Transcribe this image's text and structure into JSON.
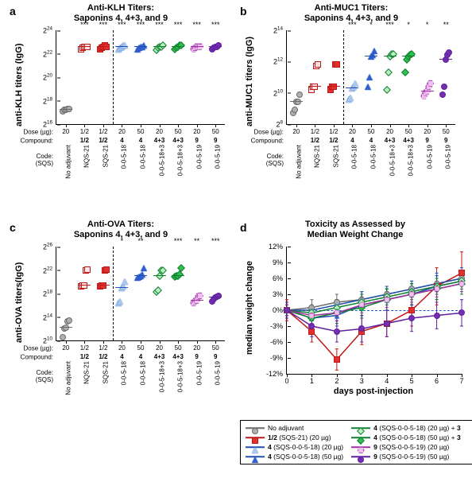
{
  "palette": {
    "no_adj": {
      "stroke": "#6b6b6b",
      "fill": "#b0b0b0",
      "shape": "circle"
    },
    "sqs21": {
      "stroke": "#c01818",
      "fill": "#e03030",
      "shape": "square"
    },
    "sqs21_open": {
      "stroke": "#c01818",
      "fill": "#ffe6e6",
      "shape": "square"
    },
    "c4_20": {
      "stroke": "#2050b0",
      "fill": "#a8c8f0",
      "shape": "tri"
    },
    "c4_50": {
      "stroke": "#2050b0",
      "fill": "#3060d0",
      "shape": "tri"
    },
    "c43_20": {
      "stroke": "#108030",
      "fill": "#b8f0c0",
      "shape": "dia"
    },
    "c43_50": {
      "stroke": "#108030",
      "fill": "#30c050",
      "shape": "dia"
    },
    "c9_20": {
      "stroke": "#a030a0",
      "fill": "#eec0f0",
      "shape": "hex"
    },
    "c9_50": {
      "stroke": "#6020a0",
      "fill": "#7030b0",
      "shape": "circle"
    }
  },
  "x_categories": [
    {
      "dose": "20",
      "compound": "",
      "code": "No adjuvant",
      "series": "no_adj",
      "sig": ""
    },
    {
      "dose": "1/2",
      "compound": "1/2",
      "code": "NQS-21",
      "series": "sqs21_open",
      "sig": "***"
    },
    {
      "dose": "1/2",
      "compound": "1/2",
      "code": "SQS-21",
      "series": "sqs21",
      "sig": "***"
    },
    {
      "dose": "20",
      "compound": "4",
      "code": "0-0-5-18",
      "series": "c4_20",
      "sig": "***",
      "dash_before": true
    },
    {
      "dose": "50",
      "compound": "4",
      "code": "0-0-5-18",
      "series": "c4_50",
      "sig": "***"
    },
    {
      "dose": "20",
      "compound": "4+3",
      "code": "0-0-5-18+3",
      "series": "c43_20",
      "sig": "***"
    },
    {
      "dose": "50",
      "compound": "4+3",
      "code": "0-0-5-18+3",
      "series": "c43_50",
      "sig": "***"
    },
    {
      "dose": "20",
      "compound": "9",
      "code": "0-0-5-19",
      "series": "c9_20",
      "sig": "***"
    },
    {
      "dose": "50",
      "compound": "9",
      "code": "0-0-5-19",
      "series": "c9_50",
      "sig": "***"
    }
  ],
  "x_categories_b_sig": [
    "",
    "",
    "",
    "***",
    "*",
    "***",
    "*",
    "*",
    "**"
  ],
  "x_categories_c_sig": [
    "",
    "",
    "",
    "*",
    "**",
    "",
    "***",
    "**",
    "***"
  ],
  "row_labels": {
    "dose": "Dose (µg):",
    "compound": "Compound:",
    "code": "Code:\n(SQS)"
  },
  "panel_a": {
    "title": "Anti-KLH Titers:\nSaponins 4, 4+3, and 9",
    "ylabel": "anti-KLH titers (IgG)",
    "ymin": 16,
    "ymax": 24,
    "ytick_step": 2,
    "data": [
      [
        17.1,
        17.2,
        17.2,
        17.3,
        17.3
      ],
      [
        22.4,
        22.5,
        22.6,
        22.6,
        22.6
      ],
      [
        22.4,
        22.5,
        22.6,
        22.7,
        22.6
      ],
      [
        22.4,
        22.5,
        22.6,
        22.7,
        22.7
      ],
      [
        22.4,
        22.5,
        22.6,
        22.6,
        22.7
      ],
      [
        22.3,
        22.5,
        22.6,
        22.6,
        22.7
      ],
      [
        22.4,
        22.5,
        22.6,
        22.7,
        22.7
      ],
      [
        22.4,
        22.5,
        22.6,
        22.6,
        22.6
      ],
      [
        22.4,
        22.5,
        22.6,
        22.6,
        22.7
      ]
    ]
  },
  "panel_b": {
    "title": "Anti-MUC1 Titers:\nSaponins 4, 4+3, and 9",
    "ylabel": "anti-MUC1 titers (IgG)",
    "ymin": 8,
    "ymax": 14,
    "ytick_step": 2,
    "data": [
      [
        8.7,
        8.9,
        9.4,
        9.4,
        9.9
      ],
      [
        10.2,
        10.4,
        10.4,
        11.7,
        11.8
      ],
      [
        10.2,
        10.4,
        10.4,
        11.8,
        11.8
      ],
      [
        9.6,
        9.7,
        10.3,
        10.4,
        10.6
      ],
      [
        10.4,
        11.0,
        12.3,
        12.4,
        12.7
      ],
      [
        10.2,
        11.3,
        12.3,
        12.5,
        12.5
      ],
      [
        11.3,
        12.1,
        12.3,
        12.4,
        12.5
      ],
      [
        9.8,
        10.0,
        10.1,
        10.4,
        10.6
      ],
      [
        9.9,
        10.4,
        12.1,
        12.4,
        12.6
      ]
    ]
  },
  "panel_c": {
    "title": "Anti-OVA Titers:\nSaponins 4, 4+3, and 9",
    "ylabel": "anti-OVA titers(IgG)",
    "ymin": 10,
    "ymax": 26,
    "ytick_step": 4,
    "data": [
      [
        10.5,
        12.0,
        12.2,
        13.3,
        13.4
      ],
      [
        19.2,
        19.3,
        19.3,
        22.0,
        22.1
      ],
      [
        19.2,
        19.3,
        19.4,
        22.0,
        22.1
      ],
      [
        16.4,
        16.6,
        19.0,
        19.2,
        20.1
      ],
      [
        20.7,
        20.8,
        21.0,
        21.2,
        22.3
      ],
      [
        18.3,
        18.5,
        21.0,
        22.0,
        22.0
      ],
      [
        20.8,
        21.0,
        21.0,
        21.2,
        22.3
      ],
      [
        16.4,
        16.7,
        16.8,
        17.5,
        17.6
      ],
      [
        16.7,
        17.0,
        17.3,
        17.5,
        17.6
      ]
    ]
  },
  "panel_d": {
    "title": "Toxicity as Assessed by\nMedian Weight Change",
    "ylabel": "median weight change",
    "xlabel": "days post-injection",
    "ymin": -12,
    "ymax": 12,
    "ytick_step": 3,
    "xticks": [
      0,
      1,
      2,
      3,
      4,
      5,
      6,
      7
    ],
    "series": [
      {
        "key": "no_adj",
        "pts": [
          0,
          0.5,
          1.5,
          2.0,
          3.0,
          4.0,
          5.0,
          6.0
        ],
        "err": [
          1,
          1.5,
          1.5,
          1.5,
          1.5,
          1.5,
          1.5,
          1.5
        ]
      },
      {
        "key": "sqs21",
        "pts": [
          0,
          -4.0,
          -9.3,
          -4.0,
          -2.5,
          0.0,
          4.5,
          7.0
        ],
        "err": [
          2,
          2,
          2,
          2.5,
          2.5,
          3,
          3.5,
          4
        ]
      },
      {
        "key": "c4_20",
        "pts": [
          0,
          0,
          1.0,
          2.0,
          3.0,
          4.0,
          5.0,
          6.0
        ],
        "err": [
          1,
          1,
          1,
          1.5,
          1.5,
          1.5,
          1.5,
          1.5
        ]
      },
      {
        "key": "c4_50",
        "pts": [
          0,
          -1.5,
          -1.0,
          1.0,
          2.0,
          3.0,
          4.5,
          5.5
        ],
        "err": [
          1.5,
          2,
          2,
          2,
          2,
          2,
          2.5,
          2.5
        ]
      },
      {
        "key": "c43_20",
        "pts": [
          0,
          -0.5,
          0.5,
          1.5,
          2.5,
          3.5,
          4.5,
          5.5
        ],
        "err": [
          1,
          1.5,
          1.5,
          1.5,
          1.5,
          1.5,
          1.5,
          1.5
        ]
      },
      {
        "key": "c43_50",
        "pts": [
          0,
          -1.5,
          -0.5,
          0.5,
          2.0,
          3.0,
          4.0,
          5.0
        ],
        "err": [
          1.5,
          2,
          2,
          2,
          2,
          2,
          2,
          2
        ]
      },
      {
        "key": "c9_20",
        "pts": [
          0,
          -1.0,
          -0.5,
          1.0,
          2.0,
          3.0,
          4.0,
          5.0
        ],
        "err": [
          1,
          1.5,
          1.5,
          1.5,
          1.5,
          1.5,
          1.5,
          1.5
        ]
      },
      {
        "key": "c9_50",
        "pts": [
          0,
          -3.0,
          -4.0,
          -3.5,
          -2.5,
          -1.5,
          -1.0,
          -0.5
        ],
        "err": [
          1.5,
          2,
          2,
          2.5,
          2.5,
          2.5,
          2.5,
          2.5
        ]
      }
    ]
  },
  "legend": [
    {
      "key": "no_adj",
      "label": "No adjuvant"
    },
    {
      "key": "sqs21",
      "label": "<b>1/2</b> (SQS-21) (20 µg)"
    },
    {
      "key": "c4_20",
      "label": "<b>4</b> (SQS-0-0-5-18) (20 µg)"
    },
    {
      "key": "c4_50",
      "label": "<b>4</b> (SQS-0-0-5-18) (50 µg)"
    },
    {
      "key": "c43_20",
      "label": "<b>4</b> (SQS-0-0-5-18) (20 µg) + <b>3</b>"
    },
    {
      "key": "c43_50",
      "label": "<b>4</b> (SQS-0-0-5-18) (50 µg) + <b>3</b>"
    },
    {
      "key": "c9_20",
      "label": "<b>9</b> (SQS-0-0-5-19) (20 µg)"
    },
    {
      "key": "c9_50",
      "label": "<b>9</b> (SQS-0-0-5-19) (50 µg)"
    }
  ]
}
